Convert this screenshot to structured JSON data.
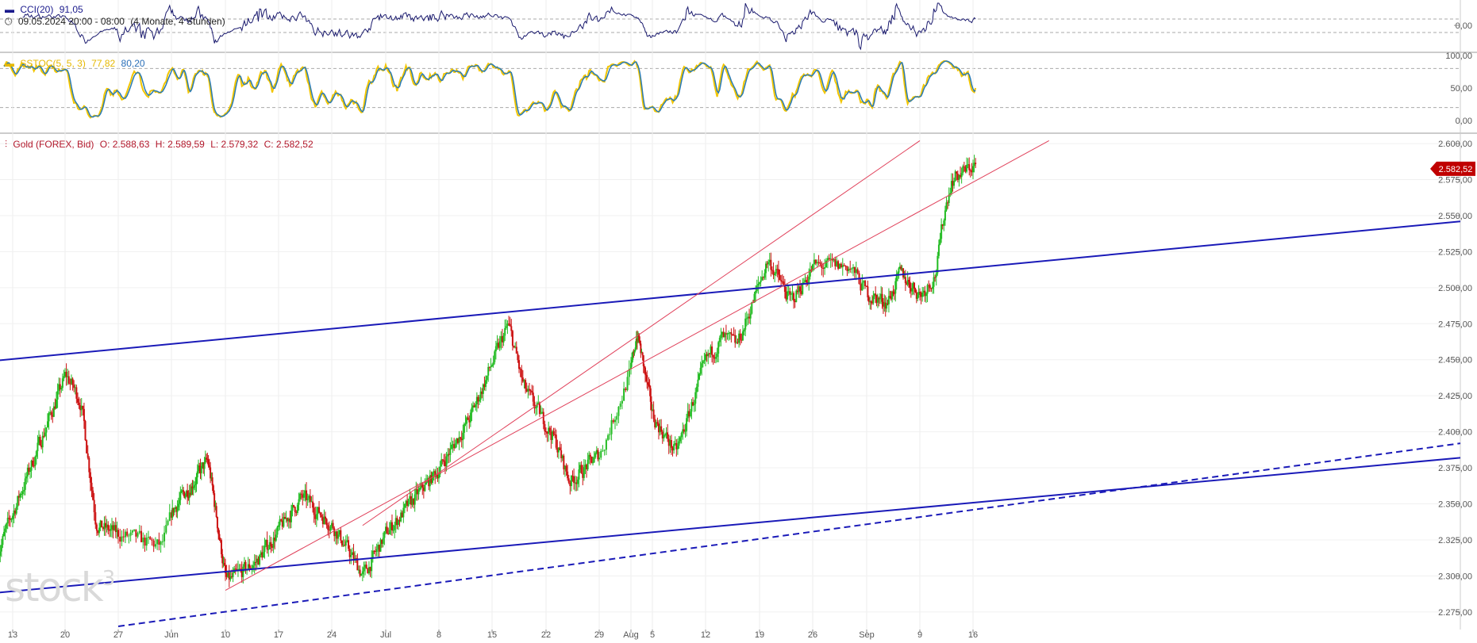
{
  "cci_header": {
    "name": "CCI(20)",
    "value": "91,05"
  },
  "range_header": {
    "range": "09.05.2024 20:00 - 08:00",
    "span": "(4 Monate, 4 Stunden)"
  },
  "stoch_header": {
    "name": "SSTOC(5, 5, 3)",
    "k_value": "77,82",
    "d_value": "80,20"
  },
  "price_header": {
    "name": "Gold (FOREX, Bid)",
    "open": "O: 2.588,63",
    "high": "H: 2.589,59",
    "low": "L: 2.579,32",
    "close": "C: 2.582,52"
  },
  "watermark": "stock",
  "watermark_sup": "3",
  "colors": {
    "up": "#22bb22",
    "down": "#cc1111",
    "channel": "#1a1ab8",
    "trend": "#e0405a",
    "cci_line": "#1a1a6e",
    "stoch_k": "#f2c500",
    "stoch_d": "#2a7bb5",
    "price_tag": "#c00000"
  },
  "chart_data": [
    {
      "type": "line",
      "title": "CCI(20)",
      "y_ticks": [
        "0,00"
      ],
      "last_value": 91.05,
      "reference_levels": [
        100,
        -100
      ]
    },
    {
      "type": "line",
      "title": "SSTOC(5, 5, 3)",
      "y_ticks": [
        "100,00",
        "50,00",
        "0,00"
      ],
      "series": [
        {
          "name": "%K",
          "last": 77.82
        },
        {
          "name": "%D",
          "last": 80.2
        }
      ],
      "reference_levels": [
        80,
        20
      ]
    },
    {
      "type": "candlestick",
      "title": "Gold (FOREX, Bid)",
      "ylim": [
        2265,
        2605
      ],
      "y_ticks": [
        "2.600,00",
        "2.575,00",
        "2.550,00",
        "2.525,00",
        "2.500,00",
        "2.475,00",
        "2.450,00",
        "2.425,00",
        "2.400,00",
        "2.375,00",
        "2.350,00",
        "2.325,00",
        "2.300,00",
        "2.275,00"
      ],
      "y_tick_values": [
        2600,
        2575,
        2550,
        2525,
        2500,
        2475,
        2450,
        2425,
        2400,
        2375,
        2350,
        2325,
        2300,
        2275
      ],
      "x_ticks": [
        "13",
        "20",
        "27",
        "Jun",
        "10",
        "17",
        "24",
        "Jul",
        "8",
        "15",
        "22",
        "29",
        "Aug",
        "5",
        "12",
        "19",
        "26",
        "Sep",
        "9",
        "16"
      ],
      "last_price_label": "2.582,52",
      "last_price": 2582.52,
      "anchors": [
        {
          "x": "13 May",
          "y": 2345
        },
        {
          "x": "20 May",
          "y": 2440
        },
        {
          "x": "22 May",
          "y": 2420
        },
        {
          "x": "24 May",
          "y": 2335
        },
        {
          "x": "31 May",
          "y": 2320
        },
        {
          "x": "Jun",
          "y": 2345
        },
        {
          "x": "7 Jun",
          "y": 2380
        },
        {
          "x": "10 Jun",
          "y": 2295
        },
        {
          "x": "14 Jun",
          "y": 2310
        },
        {
          "x": "20 Jun",
          "y": 2355
        },
        {
          "x": "24 Jun",
          "y": 2335
        },
        {
          "x": "28 Jun",
          "y": 2300
        },
        {
          "x": "Jul",
          "y": 2330
        },
        {
          "x": "8 Jul",
          "y": 2375
        },
        {
          "x": "12 Jul",
          "y": 2410
        },
        {
          "x": "17 Jul",
          "y": 2475
        },
        {
          "x": "19 Jul",
          "y": 2430
        },
        {
          "x": "23 Jul",
          "y": 2395
        },
        {
          "x": "25 Jul",
          "y": 2365
        },
        {
          "x": "29 Jul",
          "y": 2385
        },
        {
          "x": "Aug",
          "y": 2445
        },
        {
          "x": "2 Aug",
          "y": 2470
        },
        {
          "x": "5 Aug",
          "y": 2410
        },
        {
          "x": "8 Aug",
          "y": 2385
        },
        {
          "x": "12 Aug",
          "y": 2450
        },
        {
          "x": "14 Aug",
          "y": 2465
        },
        {
          "x": "16 Aug",
          "y": 2460
        },
        {
          "x": "19 Aug",
          "y": 2505
        },
        {
          "x": "20 Aug",
          "y": 2520
        },
        {
          "x": "23 Aug",
          "y": 2490
        },
        {
          "x": "26 Aug",
          "y": 2515
        },
        {
          "x": "30 Aug",
          "y": 2515
        },
        {
          "x": "Sep",
          "y": 2495
        },
        {
          "x": "4 Sep",
          "y": 2490
        },
        {
          "x": "6 Sep",
          "y": 2510
        },
        {
          "x": "9 Sep",
          "y": 2495
        },
        {
          "x": "11 Sep",
          "y": 2510
        },
        {
          "x": "12 Sep",
          "y": 2550
        },
        {
          "x": "13 Sep",
          "y": 2575
        },
        {
          "x": "16 Sep",
          "y": 2585
        }
      ],
      "drawn_lines": [
        {
          "style": "solid",
          "color": "channel",
          "from": {
            "x": "6 May",
            "y": 2447
          },
          "to": {
            "x": "axis",
            "y": 2546
          }
        },
        {
          "style": "solid",
          "color": "channel",
          "from": {
            "x": "6 May",
            "y": 2286
          },
          "to": {
            "x": "axis",
            "y": 2382
          }
        },
        {
          "style": "dashed",
          "color": "channel",
          "from": {
            "x": "27 May",
            "y": 2265
          },
          "to": {
            "x": "axis",
            "y": 2392
          }
        },
        {
          "style": "solid",
          "color": "trend",
          "from": {
            "x": "10 Jun",
            "y": 2290
          },
          "to": {
            "x": "~26 Sep",
            "y": 2602
          }
        },
        {
          "style": "solid",
          "color": "trend",
          "from": {
            "x": "28 Jun",
            "y": 2335
          },
          "to": {
            "x": "9 Sep",
            "y": 2602
          }
        }
      ]
    }
  ]
}
